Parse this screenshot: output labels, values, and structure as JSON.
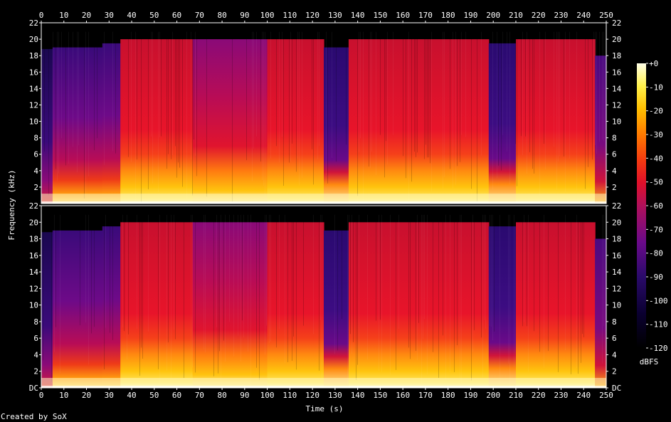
{
  "chart_data": {
    "type": "heatmap",
    "title": "",
    "xlabel": "Time (s)",
    "ylabel": "Frequency (kHz)",
    "xlim": [
      0,
      250
    ],
    "x_ticks": [
      "0",
      "10",
      "20",
      "30",
      "40",
      "50",
      "60",
      "70",
      "80",
      "90",
      "100",
      "110",
      "120",
      "130",
      "140",
      "150",
      "160",
      "170",
      "180",
      "190",
      "200",
      "210",
      "220",
      "230",
      "240",
      "250"
    ],
    "ylim_khz": [
      0,
      22
    ],
    "y_ticks": [
      "DC",
      "2",
      "4",
      "6",
      "8",
      "10",
      "12",
      "14",
      "16",
      "18",
      "20",
      "22"
    ],
    "channels": [
      {
        "y_ticks": [
          "2",
          "4",
          "6",
          "8",
          "10",
          "12",
          "14",
          "16",
          "18",
          "20",
          "22"
        ]
      },
      {
        "y_ticks": [
          "DC",
          "2",
          "4",
          "6",
          "8",
          "10",
          "12",
          "14",
          "16",
          "18",
          "20",
          "22"
        ]
      }
    ],
    "colorbar": {
      "label": "dBFS",
      "range": [
        -120,
        0
      ],
      "ticks": [
        "+0",
        "-10",
        "-20",
        "-30",
        "-40",
        "-50",
        "-60",
        "-70",
        "-80",
        "-90",
        "-100",
        "-110",
        "-120"
      ]
    },
    "segments": [
      {
        "t0": 0,
        "t1": 5,
        "cutoff_khz": 18.8,
        "level": "low"
      },
      {
        "t0": 5,
        "t1": 27,
        "cutoff_khz": 19,
        "level": "mid"
      },
      {
        "t0": 27,
        "t1": 35,
        "cutoff_khz": 19.5,
        "level": "mid"
      },
      {
        "t0": 35,
        "t1": 67,
        "cutoff_khz": 20,
        "level": "high"
      },
      {
        "t0": 67,
        "t1": 87,
        "cutoff_khz": 20,
        "level": "midhigh"
      },
      {
        "t0": 87,
        "t1": 100,
        "cutoff_khz": 20,
        "level": "midhigh"
      },
      {
        "t0": 100,
        "t1": 125,
        "cutoff_khz": 20,
        "level": "high"
      },
      {
        "t0": 125,
        "t1": 136,
        "cutoff_khz": 19,
        "level": "quiet"
      },
      {
        "t0": 136,
        "t1": 198,
        "cutoff_khz": 20,
        "level": "high"
      },
      {
        "t0": 198,
        "t1": 210,
        "cutoff_khz": 19.5,
        "level": "quiet"
      },
      {
        "t0": 210,
        "t1": 245,
        "cutoff_khz": 20,
        "level": "high"
      },
      {
        "t0": 245,
        "t1": 250,
        "cutoff_khz": 18,
        "level": "fade"
      }
    ]
  },
  "footer": {
    "credit": "Created by SoX"
  }
}
